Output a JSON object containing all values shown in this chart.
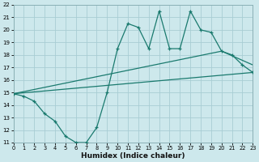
{
  "xlabel": "Humidex (Indice chaleur)",
  "background_color": "#cde8ec",
  "grid_color": "#a8cdd4",
  "line_color": "#1a7a6e",
  "xlim": [
    0,
    23
  ],
  "ylim": [
    11,
    22
  ],
  "xticks": [
    0,
    1,
    2,
    3,
    4,
    5,
    6,
    7,
    8,
    9,
    10,
    11,
    12,
    13,
    14,
    15,
    16,
    17,
    18,
    19,
    20,
    21,
    22,
    23
  ],
  "yticks": [
    11,
    12,
    13,
    14,
    15,
    16,
    17,
    18,
    19,
    20,
    21,
    22
  ],
  "line1_x": [
    0,
    1,
    2,
    3,
    4,
    5,
    6,
    7,
    8,
    9,
    10,
    11,
    12,
    13,
    14,
    15,
    16,
    17,
    18,
    19,
    20,
    21,
    22,
    23
  ],
  "line1_y": [
    14.9,
    14.7,
    14.3,
    13.3,
    12.7,
    11.5,
    11.0,
    11.0,
    12.2,
    15.0,
    18.5,
    20.5,
    20.2,
    18.5,
    21.5,
    18.5,
    18.5,
    21.5,
    20.0,
    19.8,
    18.3,
    18.0,
    17.2,
    16.6
  ],
  "line2_x": [
    0,
    20,
    23
  ],
  "line2_y": [
    14.9,
    18.3,
    17.2
  ],
  "line3_x": [
    0,
    23
  ],
  "line3_y": [
    14.9,
    16.6
  ]
}
